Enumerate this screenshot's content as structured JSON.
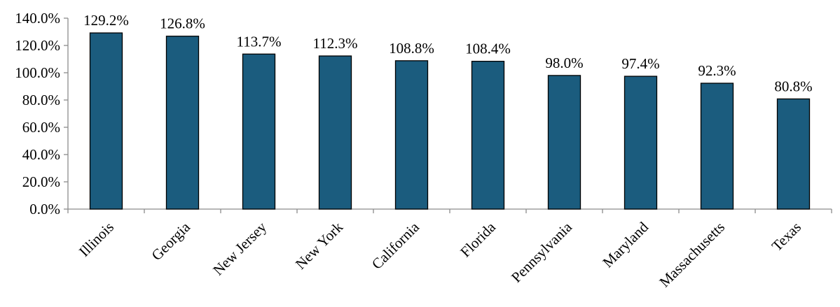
{
  "chart_data": {
    "type": "bar",
    "title": "",
    "xlabel": "",
    "ylabel": "",
    "categories": [
      "Illinois",
      "Georgia",
      "New Jersey",
      "New York",
      "California",
      "Florida",
      "Pennsylvania",
      "Maryland",
      "Massachusetts",
      "Texas"
    ],
    "values": [
      129.2,
      126.8,
      113.7,
      112.3,
      108.8,
      108.4,
      98.0,
      97.4,
      92.3,
      80.8
    ],
    "data_labels": [
      "129.2%",
      "126.8%",
      "113.7%",
      "112.3%",
      "108.8%",
      "108.4%",
      "98.0%",
      "97.4%",
      "92.3%",
      "80.8%"
    ],
    "y_ticks": [
      0,
      20,
      40,
      60,
      80,
      100,
      120,
      140
    ],
    "y_tick_labels": [
      "0.0%",
      "20.0%",
      "40.0%",
      "60.0%",
      "80.0%",
      "100.0%",
      "120.0%",
      "140.0%"
    ],
    "ylim": [
      0,
      140
    ],
    "grid": false,
    "legend": "none",
    "bar_color": "#1b5c7e",
    "bar_edge_color": "#000000"
  }
}
